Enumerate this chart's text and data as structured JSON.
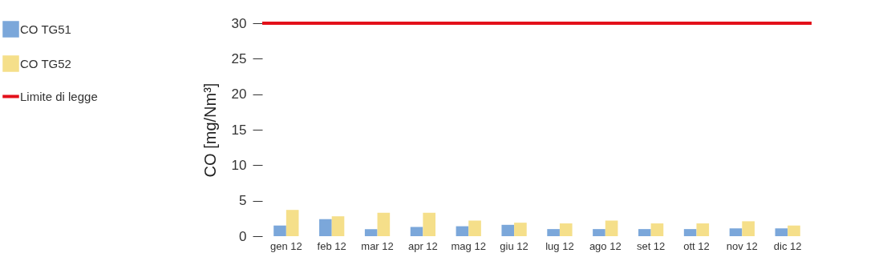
{
  "chart_data": {
    "type": "bar",
    "ylabel": "CO [mg/Nm³]",
    "categories": [
      "gen 12",
      "feb 12",
      "mar 12",
      "apr 12",
      "mag 12",
      "giu 12",
      "lug 12",
      "ago 12",
      "set 12",
      "ott 12",
      "nov 12",
      "dic 12"
    ],
    "series": [
      {
        "name": "CO TG51",
        "color": "#7ba7da",
        "values": [
          1.5,
          2.4,
          1.0,
          1.3,
          1.4,
          1.6,
          1.0,
          1.0,
          1.0,
          1.0,
          1.1,
          1.1
        ]
      },
      {
        "name": "CO TG52",
        "color": "#f5df8a",
        "values": [
          3.7,
          2.8,
          3.3,
          3.3,
          2.2,
          1.9,
          1.8,
          2.2,
          1.8,
          1.8,
          2.1,
          1.5
        ]
      }
    ],
    "ylim": [
      0,
      30
    ],
    "yticks": [
      0,
      5,
      10,
      15,
      20,
      25,
      30
    ],
    "ref_lines": [
      {
        "axis": "y",
        "value": 30,
        "label": "Limite di legge",
        "color": "#e3101a"
      }
    ],
    "grid": false,
    "legend": "left"
  }
}
